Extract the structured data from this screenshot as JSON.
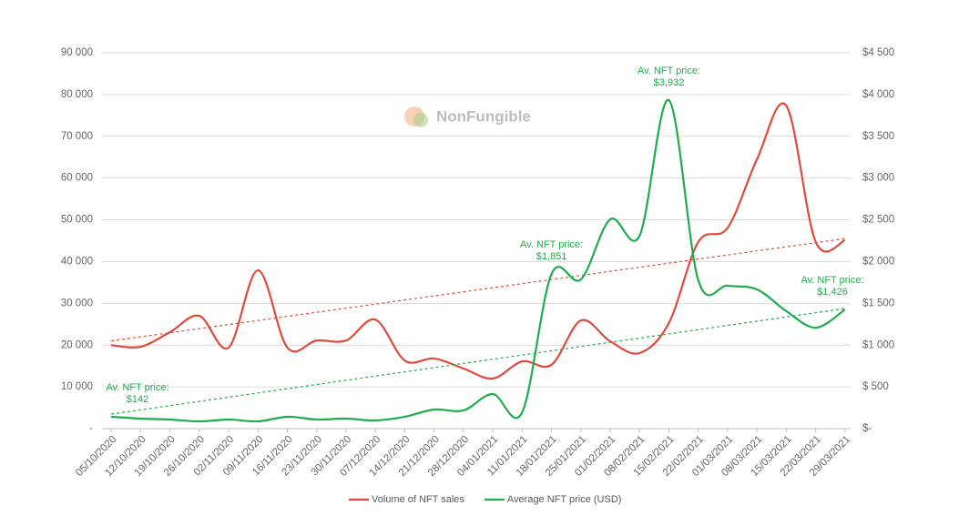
{
  "chart_data": {
    "type": "line",
    "watermark": "NonFungible",
    "categories": [
      "05/10/2020",
      "12/10/2020",
      "19/10/2020",
      "26/10/2020",
      "02/11/2020",
      "09/11/2020",
      "16/11/2020",
      "23/11/2020",
      "30/11/2020",
      "07/12/2020",
      "14/12/2020",
      "21/12/2020",
      "28/12/2020",
      "04/01/2021",
      "11/01/2021",
      "18/01/2021",
      "25/01/2021",
      "01/02/2021",
      "08/02/2021",
      "15/02/2021",
      "22/02/2021",
      "01/03/2021",
      "08/03/2021",
      "15/03/2021",
      "22/03/2021",
      "29/03/2021"
    ],
    "series": [
      {
        "name": "Volume of NFT sales",
        "color": "#e04a3c",
        "axis": "y",
        "values": [
          20000,
          19600,
          23100,
          27000,
          19400,
          37900,
          19400,
          21100,
          21100,
          26100,
          16300,
          16800,
          14400,
          12000,
          16100,
          15300,
          25900,
          20900,
          18100,
          25300,
          44700,
          48100,
          64500,
          77300,
          44700,
          45100
        ],
        "trend": [
          21000,
          45500
        ]
      },
      {
        "name": "Average NFT price (USD)",
        "color": "#1fac4c",
        "axis": "y2",
        "values": [
          142,
          120,
          109,
          87,
          109,
          87,
          142,
          109,
          120,
          98,
          142,
          229,
          218,
          414,
          196,
          1851,
          1787,
          2506,
          2310,
          3932,
          1776,
          1711,
          1667,
          1406,
          1209,
          1426
        ],
        "value_labels": [
          "$142",
          null,
          null,
          null,
          null,
          null,
          null,
          null,
          null,
          null,
          null,
          null,
          null,
          null,
          null,
          "$1,851",
          null,
          null,
          null,
          "$3,932",
          null,
          null,
          null,
          null,
          null,
          "$1,426"
        ],
        "label_caption": "Av. NFT price:",
        "trend": [
          174,
          1438
        ]
      }
    ],
    "ylim": [
      0,
      90000
    ],
    "yticks": [
      {
        "value": 0,
        "label": "-"
      },
      {
        "value": 10000,
        "label": "10 000"
      },
      {
        "value": 20000,
        "label": "20 000"
      },
      {
        "value": 30000,
        "label": "30 000"
      },
      {
        "value": 40000,
        "label": "40 000"
      },
      {
        "value": 50000,
        "label": "50 000"
      },
      {
        "value": 60000,
        "label": "60 000"
      },
      {
        "value": 70000,
        "label": "70 000"
      },
      {
        "value": 80000,
        "label": "80 000"
      },
      {
        "value": 90000,
        "label": "90 000"
      }
    ],
    "y2lim": [
      0,
      4500
    ],
    "y2ticks": [
      {
        "value": 0,
        "label": "$-"
      },
      {
        "value": 500,
        "label": "$ 500"
      },
      {
        "value": 1000,
        "label": "$1 000"
      },
      {
        "value": 1500,
        "label": "$1 500"
      },
      {
        "value": 2000,
        "label": "$2 000"
      },
      {
        "value": 2500,
        "label": "$2 500"
      },
      {
        "value": 3000,
        "label": "$3 000"
      },
      {
        "value": 3500,
        "label": "$3 500"
      },
      {
        "value": 4000,
        "label": "$4 000"
      },
      {
        "value": 4500,
        "label": "$4 500"
      }
    ],
    "grid": true,
    "legend": "bottom"
  }
}
